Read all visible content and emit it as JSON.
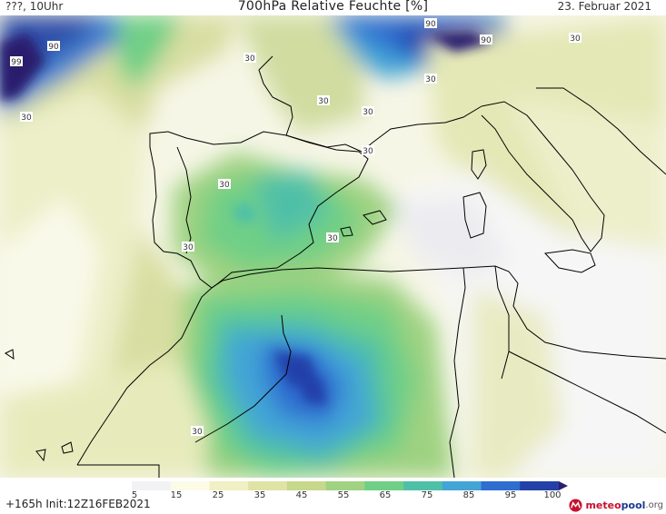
{
  "header": {
    "left": "???, 10Uhr",
    "title": "700hPa Relative Feuchte [%]",
    "date": "23. Februar 2021"
  },
  "map": {
    "region": "Western Mediterranean / Iberia / North Africa",
    "contour_labels": [
      "90",
      "90",
      "90",
      "99",
      "30",
      "30",
      "30",
      "30",
      "30",
      "30",
      "30",
      "30",
      "30",
      "30",
      "30",
      "30"
    ]
  },
  "legend": {
    "ticks": [
      "5",
      "15",
      "25",
      "35",
      "45",
      "55",
      "65",
      "75",
      "85",
      "95",
      "100"
    ],
    "colors": [
      "#f2f2f4",
      "#fbfbe8",
      "#f0f0c4",
      "#dfe3a6",
      "#c7d78b",
      "#9fd281",
      "#6fcf86",
      "#4fc0a8",
      "#43a4d6",
      "#2f6dd0",
      "#2441a8",
      "#2a1f6d"
    ]
  },
  "footer": {
    "init": "+165h Init:12Z16FEB2021",
    "logo_part1": "meteo",
    "logo_part2": "pool",
    "logo_part3": ".org"
  }
}
